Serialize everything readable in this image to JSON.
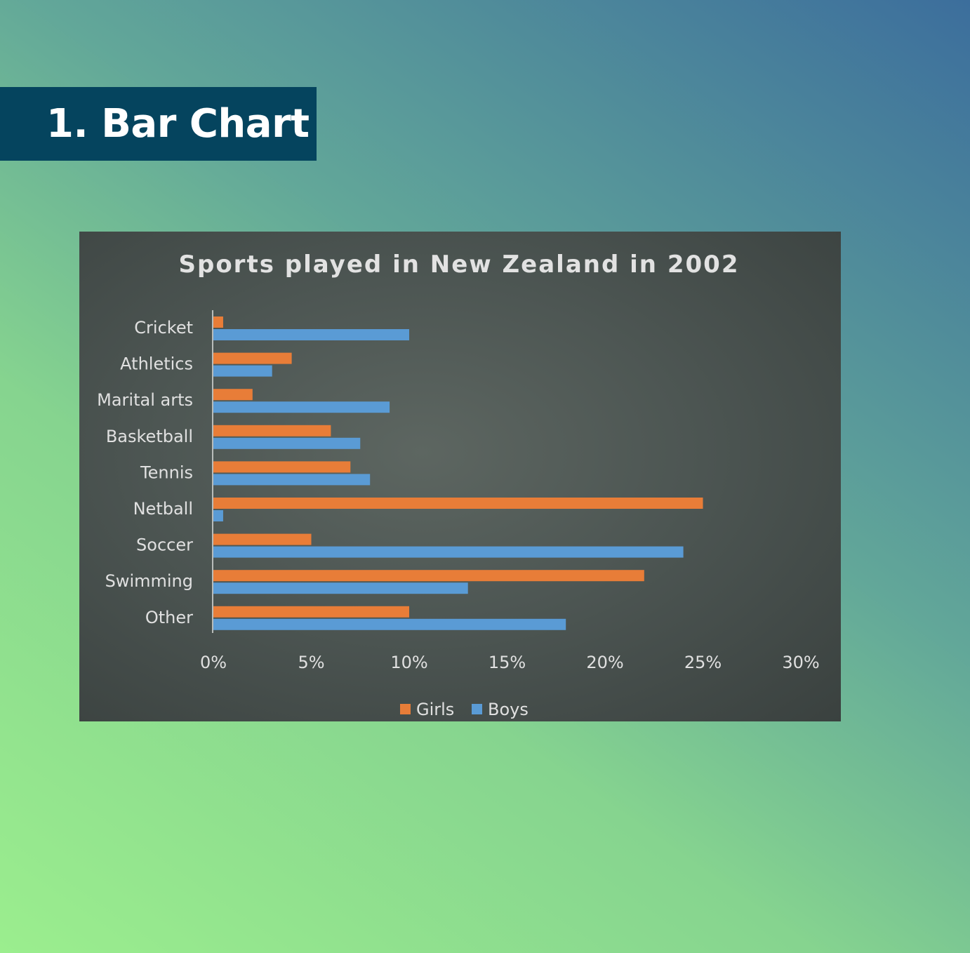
{
  "heading": {
    "text": "1. Bar Chart"
  },
  "chart_data": {
    "type": "bar",
    "orientation": "horizontal",
    "title": "Sports played in New Zealand in 2002",
    "categories": [
      "Cricket",
      "Athletics",
      "Marital arts",
      "Basketball",
      "Tennis",
      "Netball",
      "Soccer",
      "Swimming",
      "Other"
    ],
    "series": [
      {
        "name": "Girls",
        "color": "#e87d38",
        "values": [
          0.5,
          4,
          2,
          6,
          7,
          25,
          5,
          22,
          10
        ]
      },
      {
        "name": "Boys",
        "color": "#5a9bd5",
        "values": [
          10,
          3,
          9,
          7.5,
          8,
          0.5,
          24,
          13,
          18
        ]
      }
    ],
    "xlim": [
      0,
      30
    ],
    "xticks": [
      "0%",
      "5%",
      "10%",
      "15%",
      "20%",
      "25%",
      "30%"
    ],
    "xlabel": "",
    "ylabel": "",
    "grid": false,
    "legend": "bottom"
  }
}
